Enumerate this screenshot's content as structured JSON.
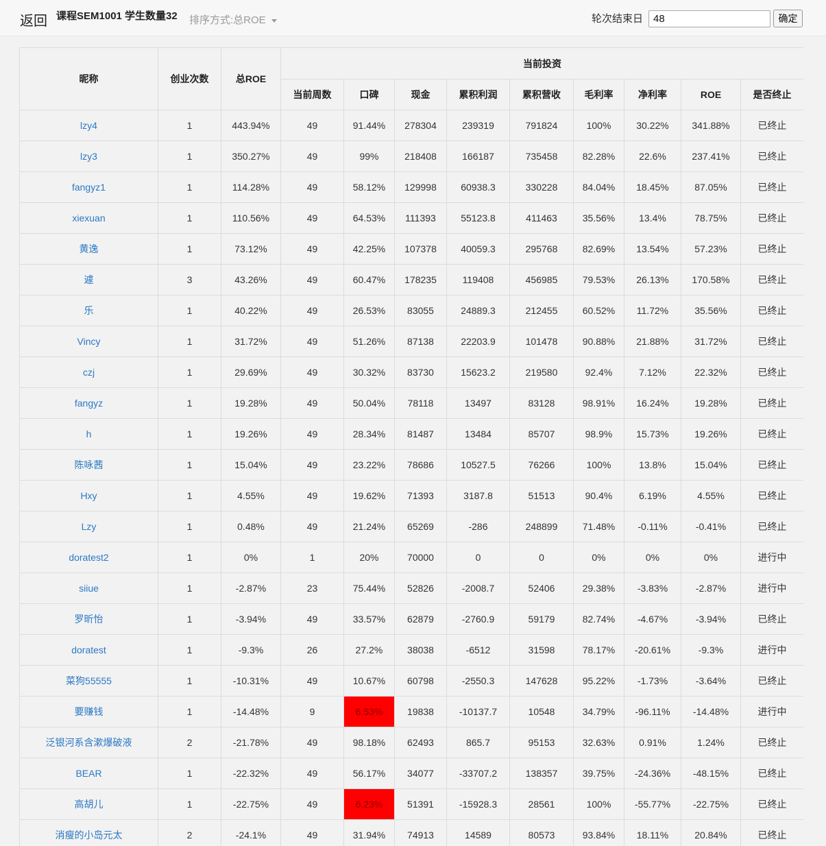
{
  "header": {
    "back_label": "返回",
    "course_info": "课程SEM1001  学生数量32",
    "sort_label": "排序方式:总ROE",
    "end_label": "轮次结束日",
    "end_value": "48",
    "confirm_label": "确定"
  },
  "table": {
    "headers": {
      "nickname": "昵称",
      "ventures": "创业次数",
      "total_roe": "总ROE",
      "current_group": "当前投资",
      "sub": [
        "当前周数",
        "口碑",
        "现金",
        "累积利润",
        "累积营收",
        "毛利率",
        "净利率",
        "ROE",
        "是否终止"
      ]
    },
    "highlight_color": "#ff0000",
    "rows": [
      {
        "nick": "lzy4",
        "ventures": "1",
        "total_roe": "443.94%",
        "week": "49",
        "reputation": "91.44%",
        "cash": "278304",
        "profit": "239319",
        "revenue": "791824",
        "gross": "100%",
        "net": "30.22%",
        "roe": "341.88%",
        "status": "已终止",
        "low": false
      },
      {
        "nick": "lzy3",
        "ventures": "1",
        "total_roe": "350.27%",
        "week": "49",
        "reputation": "99%",
        "cash": "218408",
        "profit": "166187",
        "revenue": "735458",
        "gross": "82.28%",
        "net": "22.6%",
        "roe": "237.41%",
        "status": "已终止",
        "low": false
      },
      {
        "nick": "fangyz1",
        "ventures": "1",
        "total_roe": "114.28%",
        "week": "49",
        "reputation": "58.12%",
        "cash": "129998",
        "profit": "60938.3",
        "revenue": "330228",
        "gross": "84.04%",
        "net": "18.45%",
        "roe": "87.05%",
        "status": "已终止",
        "low": false
      },
      {
        "nick": "xiexuan",
        "ventures": "1",
        "total_roe": "110.56%",
        "week": "49",
        "reputation": "64.53%",
        "cash": "111393",
        "profit": "55123.8",
        "revenue": "411463",
        "gross": "35.56%",
        "net": "13.4%",
        "roe": "78.75%",
        "status": "已终止",
        "low": false
      },
      {
        "nick": "黄逸",
        "ventures": "1",
        "total_roe": "73.12%",
        "week": "49",
        "reputation": "42.25%",
        "cash": "107378",
        "profit": "40059.3",
        "revenue": "295768",
        "gross": "82.69%",
        "net": "13.54%",
        "roe": "57.23%",
        "status": "已终止",
        "low": false
      },
      {
        "nick": "遽",
        "ventures": "3",
        "total_roe": "43.26%",
        "week": "49",
        "reputation": "60.47%",
        "cash": "178235",
        "profit": "119408",
        "revenue": "456985",
        "gross": "79.53%",
        "net": "26.13%",
        "roe": "170.58%",
        "status": "已终止",
        "low": false
      },
      {
        "nick": "乐",
        "ventures": "1",
        "total_roe": "40.22%",
        "week": "49",
        "reputation": "26.53%",
        "cash": "83055",
        "profit": "24889.3",
        "revenue": "212455",
        "gross": "60.52%",
        "net": "11.72%",
        "roe": "35.56%",
        "status": "已终止",
        "low": false
      },
      {
        "nick": "Vincy",
        "ventures": "1",
        "total_roe": "31.72%",
        "week": "49",
        "reputation": "51.26%",
        "cash": "87138",
        "profit": "22203.9",
        "revenue": "101478",
        "gross": "90.88%",
        "net": "21.88%",
        "roe": "31.72%",
        "status": "已终止",
        "low": false
      },
      {
        "nick": "czj",
        "ventures": "1",
        "total_roe": "29.69%",
        "week": "49",
        "reputation": "30.32%",
        "cash": "83730",
        "profit": "15623.2",
        "revenue": "219580",
        "gross": "92.4%",
        "net": "7.12%",
        "roe": "22.32%",
        "status": "已终止",
        "low": false
      },
      {
        "nick": "fangyz",
        "ventures": "1",
        "total_roe": "19.28%",
        "week": "49",
        "reputation": "50.04%",
        "cash": "78118",
        "profit": "13497",
        "revenue": "83128",
        "gross": "98.91%",
        "net": "16.24%",
        "roe": "19.28%",
        "status": "已终止",
        "low": false
      },
      {
        "nick": "h",
        "ventures": "1",
        "total_roe": "19.26%",
        "week": "49",
        "reputation": "28.34%",
        "cash": "81487",
        "profit": "13484",
        "revenue": "85707",
        "gross": "98.9%",
        "net": "15.73%",
        "roe": "19.26%",
        "status": "已终止",
        "low": false
      },
      {
        "nick": "陈咏茜",
        "ventures": "1",
        "total_roe": "15.04%",
        "week": "49",
        "reputation": "23.22%",
        "cash": "78686",
        "profit": "10527.5",
        "revenue": "76266",
        "gross": "100%",
        "net": "13.8%",
        "roe": "15.04%",
        "status": "已终止",
        "low": false
      },
      {
        "nick": "Hxy",
        "ventures": "1",
        "total_roe": "4.55%",
        "week": "49",
        "reputation": "19.62%",
        "cash": "71393",
        "profit": "3187.8",
        "revenue": "51513",
        "gross": "90.4%",
        "net": "6.19%",
        "roe": "4.55%",
        "status": "已终止",
        "low": false
      },
      {
        "nick": "Lzy",
        "ventures": "1",
        "total_roe": "0.48%",
        "week": "49",
        "reputation": "21.24%",
        "cash": "65269",
        "profit": "-286",
        "revenue": "248899",
        "gross": "71.48%",
        "net": "-0.11%",
        "roe": "-0.41%",
        "status": "已终止",
        "low": false
      },
      {
        "nick": "doratest2",
        "ventures": "1",
        "total_roe": "0%",
        "week": "1",
        "reputation": "20%",
        "cash": "70000",
        "profit": "0",
        "revenue": "0",
        "gross": "0%",
        "net": "0%",
        "roe": "0%",
        "status": "进行中",
        "low": false
      },
      {
        "nick": "siiue",
        "ventures": "1",
        "total_roe": "-2.87%",
        "week": "23",
        "reputation": "75.44%",
        "cash": "52826",
        "profit": "-2008.7",
        "revenue": "52406",
        "gross": "29.38%",
        "net": "-3.83%",
        "roe": "-2.87%",
        "status": "进行中",
        "low": false
      },
      {
        "nick": "罗昕怡",
        "ventures": "1",
        "total_roe": "-3.94%",
        "week": "49",
        "reputation": "33.57%",
        "cash": "62879",
        "profit": "-2760.9",
        "revenue": "59179",
        "gross": "82.74%",
        "net": "-4.67%",
        "roe": "-3.94%",
        "status": "已终止",
        "low": false
      },
      {
        "nick": "doratest",
        "ventures": "1",
        "total_roe": "-9.3%",
        "week": "26",
        "reputation": "27.2%",
        "cash": "38038",
        "profit": "-6512",
        "revenue": "31598",
        "gross": "78.17%",
        "net": "-20.61%",
        "roe": "-9.3%",
        "status": "进行中",
        "low": false
      },
      {
        "nick": "菜狗55555",
        "ventures": "1",
        "total_roe": "-10.31%",
        "week": "49",
        "reputation": "10.67%",
        "cash": "60798",
        "profit": "-2550.3",
        "revenue": "147628",
        "gross": "95.22%",
        "net": "-1.73%",
        "roe": "-3.64%",
        "status": "已终止",
        "low": false
      },
      {
        "nick": "要赚钱",
        "ventures": "1",
        "total_roe": "-14.48%",
        "week": "9",
        "reputation": "6.53%",
        "cash": "19838",
        "profit": "-10137.7",
        "revenue": "10548",
        "gross": "34.79%",
        "net": "-96.11%",
        "roe": "-14.48%",
        "status": "进行中",
        "low": true
      },
      {
        "nick": "泛银河系含漱爆破液",
        "ventures": "2",
        "total_roe": "-21.78%",
        "week": "49",
        "reputation": "98.18%",
        "cash": "62493",
        "profit": "865.7",
        "revenue": "95153",
        "gross": "32.63%",
        "net": "0.91%",
        "roe": "1.24%",
        "status": "已终止",
        "low": false
      },
      {
        "nick": "BEAR",
        "ventures": "1",
        "total_roe": "-22.32%",
        "week": "49",
        "reputation": "56.17%",
        "cash": "34077",
        "profit": "-33707.2",
        "revenue": "138357",
        "gross": "39.75%",
        "net": "-24.36%",
        "roe": "-48.15%",
        "status": "已终止",
        "low": false
      },
      {
        "nick": "高胡儿",
        "ventures": "1",
        "total_roe": "-22.75%",
        "week": "49",
        "reputation": "6.23%",
        "cash": "51391",
        "profit": "-15928.3",
        "revenue": "28561",
        "gross": "100%",
        "net": "-55.77%",
        "roe": "-22.75%",
        "status": "已终止",
        "low": true
      },
      {
        "nick": "消瘦的小岛元太",
        "ventures": "2",
        "total_roe": "-24.1%",
        "week": "49",
        "reputation": "31.94%",
        "cash": "74913",
        "profit": "14589",
        "revenue": "80573",
        "gross": "93.84%",
        "net": "18.11%",
        "roe": "20.84%",
        "status": "已终止",
        "low": false
      }
    ]
  }
}
